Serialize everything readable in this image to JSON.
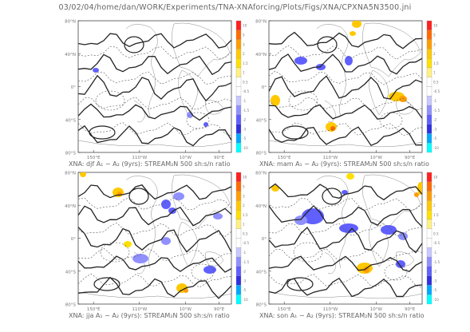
{
  "page_title": "03/02/04/home/dan/WORK/Experiments/TNA-XNAforcing/Plots/Figs/XNA/CPXNA5N3500.jni",
  "lat_labels": [
    "80°N",
    "40°N",
    "0°",
    "40°S",
    "80°S"
  ],
  "lon_labels": [
    "150°E",
    "110°W",
    "10°W",
    "90°E"
  ],
  "colorbar": {
    "labels": [
      "10",
      "5",
      "3",
      "2",
      "1.5",
      "1",
      "0.5",
      "-0.5",
      "-1",
      "-1.5",
      "-2",
      "-3",
      "-5",
      "-10"
    ],
    "colors": [
      "#ff2020",
      "#ff6a00",
      "#ff9d00",
      "#ffc800",
      "#ffe000",
      "#fff080",
      "#ffffff",
      "#ffffff",
      "#c8c8ff",
      "#9090ff",
      "#6060ff",
      "#3030e0",
      "#00a8ff",
      "#00ffff"
    ]
  },
  "panels": [
    {
      "caption": "XNA: djf A₁ − A₂ (9yrs): STREAM₂N 500 sh:s/n ratio"
    },
    {
      "caption": "XNA: mam A₁ − A₂ (9yrs): STREAM₂N 500 sh:s/n ratio"
    },
    {
      "caption": "XNA: jja A₁ − A₂ (9yrs): STREAM₂N 500 sh:s/n ratio"
    },
    {
      "caption": "XNA: son A₁ − A₂ (9yrs): STREAM₂N 500 sh:s/n ratio"
    }
  ]
}
